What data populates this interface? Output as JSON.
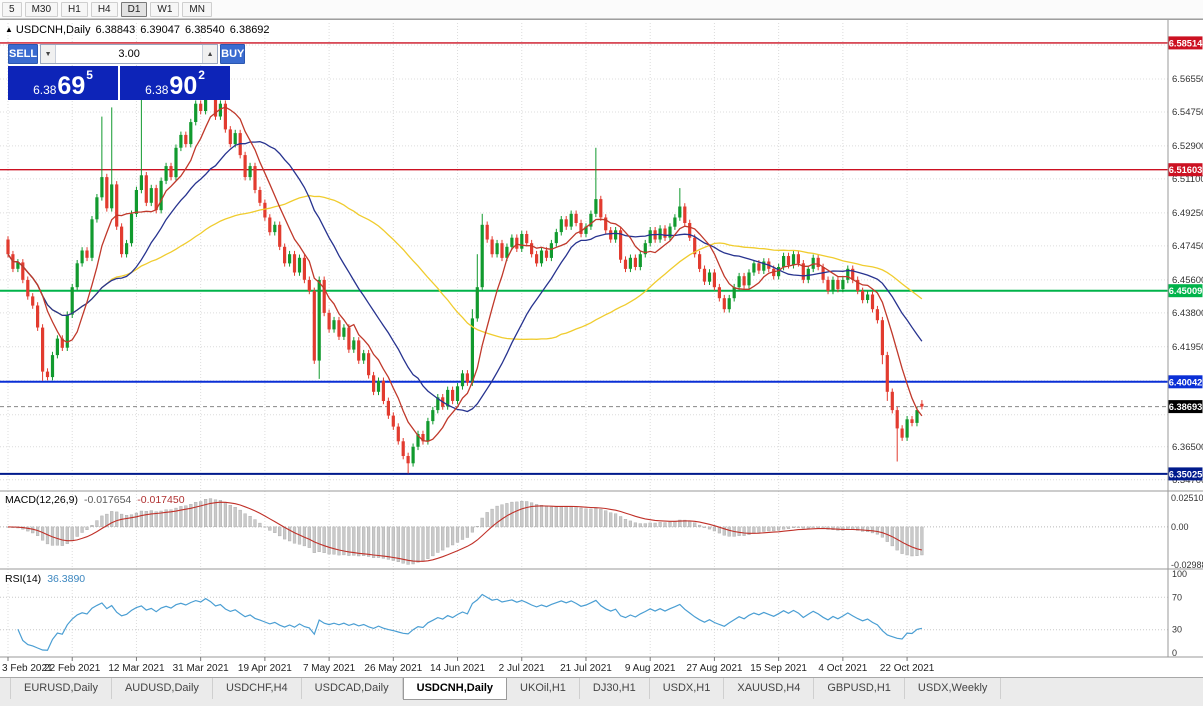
{
  "toolbar": {
    "timeframes": [
      {
        "label": "5",
        "active": false
      },
      {
        "label": "M30",
        "active": false
      },
      {
        "label": "H1",
        "active": false
      },
      {
        "label": "H4",
        "active": false
      },
      {
        "label": "D1",
        "active": true
      },
      {
        "label": "W1",
        "active": false
      },
      {
        "label": "MN",
        "active": false
      }
    ]
  },
  "chart_header": {
    "collapse_icon": "▲",
    "title": "USDCNH,Daily",
    "open": "6.38843",
    "high": "6.39047",
    "low": "6.38540",
    "close": "6.38692"
  },
  "trade_panel": {
    "sell": "SELL",
    "buy": "BUY",
    "volume": "3.00",
    "spin_down_icon": "▼",
    "spin_up_icon": "▲",
    "bid": {
      "prefix": "6.38",
      "big": "69",
      "sup": "5"
    },
    "ask": {
      "prefix": "6.38",
      "big": "90",
      "sup": "2"
    }
  },
  "chart_data": {
    "type": "candlestick",
    "symbol": "USDCNH",
    "timeframe": "Daily",
    "ylim": [
      6.342,
      6.596
    ],
    "first_open": 6.478,
    "default_wick": 0.0018,
    "closes": [
      6.47,
      6.462,
      6.4655,
      6.456,
      6.447,
      6.442,
      6.43,
      6.406,
      6.403,
      6.415,
      6.424,
      6.419,
      6.437,
      6.452,
      6.465,
      6.472,
      6.468,
      6.489,
      6.501,
      6.512,
      6.495,
      6.508,
      6.485,
      6.47,
      6.476,
      6.492,
      6.505,
      6.513,
      6.498,
      6.506,
      6.494,
      6.51,
      6.518,
      6.512,
      6.528,
      6.535,
      6.53,
      6.542,
      6.552,
      6.548,
      6.566,
      6.558,
      6.545,
      6.552,
      6.538,
      6.53,
      6.536,
      6.524,
      6.512,
      6.518,
      6.505,
      6.498,
      6.49,
      6.482,
      6.486,
      6.474,
      6.465,
      6.47,
      6.46,
      6.468,
      6.456,
      6.45,
      6.412,
      6.456,
      6.438,
      6.429,
      6.434,
      6.425,
      6.43,
      6.418,
      6.423,
      6.412,
      6.416,
      6.404,
      6.395,
      6.401,
      6.39,
      6.382,
      6.376,
      6.368,
      6.36,
      6.356,
      6.365,
      6.372,
      6.368,
      6.379,
      6.385,
      6.392,
      6.387,
      6.396,
      6.39,
      6.398,
      6.405,
      6.4,
      6.435,
      6.452,
      6.486,
      6.478,
      6.47,
      6.476,
      6.468,
      6.474,
      6.479,
      6.473,
      6.481,
      6.476,
      6.47,
      6.465,
      6.472,
      6.468,
      6.476,
      6.482,
      6.489,
      6.485,
      6.492,
      6.487,
      6.481,
      6.485,
      6.492,
      6.5,
      6.49,
      6.483,
      6.478,
      6.483,
      6.467,
      6.462,
      6.468,
      6.463,
      6.47,
      6.476,
      6.483,
      6.478,
      6.484,
      6.479,
      6.485,
      6.49,
      6.496,
      6.487,
      6.479,
      6.47,
      6.462,
      6.455,
      6.46,
      6.452,
      6.446,
      6.44,
      6.446,
      6.452,
      6.458,
      6.453,
      6.46,
      6.465,
      6.461,
      6.466,
      6.462,
      6.458,
      6.463,
      6.469,
      6.464,
      6.47,
      6.465,
      6.456,
      6.462,
      6.468,
      6.463,
      6.456,
      6.45,
      6.456,
      6.451,
      6.456,
      6.462,
      6.456,
      6.45,
      6.445,
      6.448,
      6.44,
      6.434,
      6.415,
      6.395,
      6.385,
      6.375,
      6.37,
      6.38,
      6.378,
      6.385,
      6.38692
    ],
    "last_ohlc": [
      6.38843,
      6.39047,
      6.3854,
      6.38692
    ],
    "wick_overrides": {
      "7": {
        "low": 6.401
      },
      "19": {
        "high": 6.545
      },
      "21": {
        "high": 6.55
      },
      "27": {
        "high": 6.565
      },
      "40": {
        "high": 6.572
      },
      "63": {
        "low": 6.402
      },
      "81": {
        "low": 6.3505
      },
      "94": {
        "high": 6.44
      },
      "95": {
        "high": 6.47
      },
      "96": {
        "high": 6.492
      },
      "119": {
        "high": 6.528
      },
      "136": {
        "high": 6.506
      },
      "177": {
        "low": 6.41
      },
      "178": {
        "low": 6.39
      },
      "180": {
        "low": 6.357
      }
    },
    "x_labels": [
      "3 Feb 2021",
      "22 Feb 2021",
      "12 Mar 2021",
      "31 Mar 2021",
      "19 Apr 2021",
      "7 May 2021",
      "26 May 2021",
      "14 Jun 2021",
      "2 Jul 2021",
      "21 Jul 2021",
      "9 Aug 2021",
      "27 Aug 2021",
      "15 Sep 2021",
      "4 Oct 2021",
      "22 Oct 2021"
    ],
    "x_label_every": 13,
    "y_ticks": [
      6.5655,
      6.5475,
      6.529,
      6.511,
      6.4925,
      6.4745,
      6.456,
      6.438,
      6.4195,
      6.365,
      6.347
    ],
    "grid_only_ticks": [
      6.584,
      6.401,
      6.3825
    ],
    "bull_color": "#119a2e",
    "bear_color": "#e23b2f",
    "moving_averages": [
      {
        "period": 8,
        "color": "#c0392b"
      },
      {
        "period": 21,
        "color": "#27338f"
      },
      {
        "period": 50,
        "color": "#f0cc2e"
      }
    ]
  },
  "levels": [
    {
      "price": 6.58514,
      "color": "#cc1122",
      "width": 1.4
    },
    {
      "price": 6.51603,
      "color": "#cc1122",
      "width": 1.4
    },
    {
      "price": 6.45009,
      "color": "#00b34a",
      "width": 2
    },
    {
      "price": 6.40042,
      "color": "#0a2fd6",
      "width": 2
    },
    {
      "price": 6.35025,
      "color": "#001a8c",
      "width": 2
    }
  ],
  "current_price": {
    "price": 6.38693,
    "badge_color": "#000000"
  },
  "macd": {
    "label": "MACD(12,26,9)",
    "value1": "-0.017654",
    "value2": "-0.017450",
    "range": [
      -0.02988,
      0.0251
    ],
    "axis_labels": [
      "0.02510",
      "0.00",
      "-0.02988"
    ],
    "hist_color": "#c9c9c9",
    "signal_color": "#c03028"
  },
  "rsi": {
    "label": "RSI(14)",
    "value": "36.3890",
    "levels": [
      70,
      30
    ],
    "axis_labels": [
      "100",
      "70",
      "30",
      "0"
    ],
    "line_color": "#4a9ed3"
  },
  "tabs": [
    {
      "label": "EURUSD,Daily",
      "active": false
    },
    {
      "label": "AUDUSD,Daily",
      "active": false
    },
    {
      "label": "USDCHF,H4",
      "active": false
    },
    {
      "label": "USDCAD,Daily",
      "active": false
    },
    {
      "label": "USDCNH,Daily",
      "active": true
    },
    {
      "label": "UKOil,H1",
      "active": false
    },
    {
      "label": "DJ30,H1",
      "active": false
    },
    {
      "label": "USDX,H1",
      "active": false
    },
    {
      "label": "XAUUSD,H4",
      "active": false
    },
    {
      "label": "GBPUSD,H1",
      "active": false
    },
    {
      "label": "USDX,Weekly",
      "active": false
    }
  ]
}
